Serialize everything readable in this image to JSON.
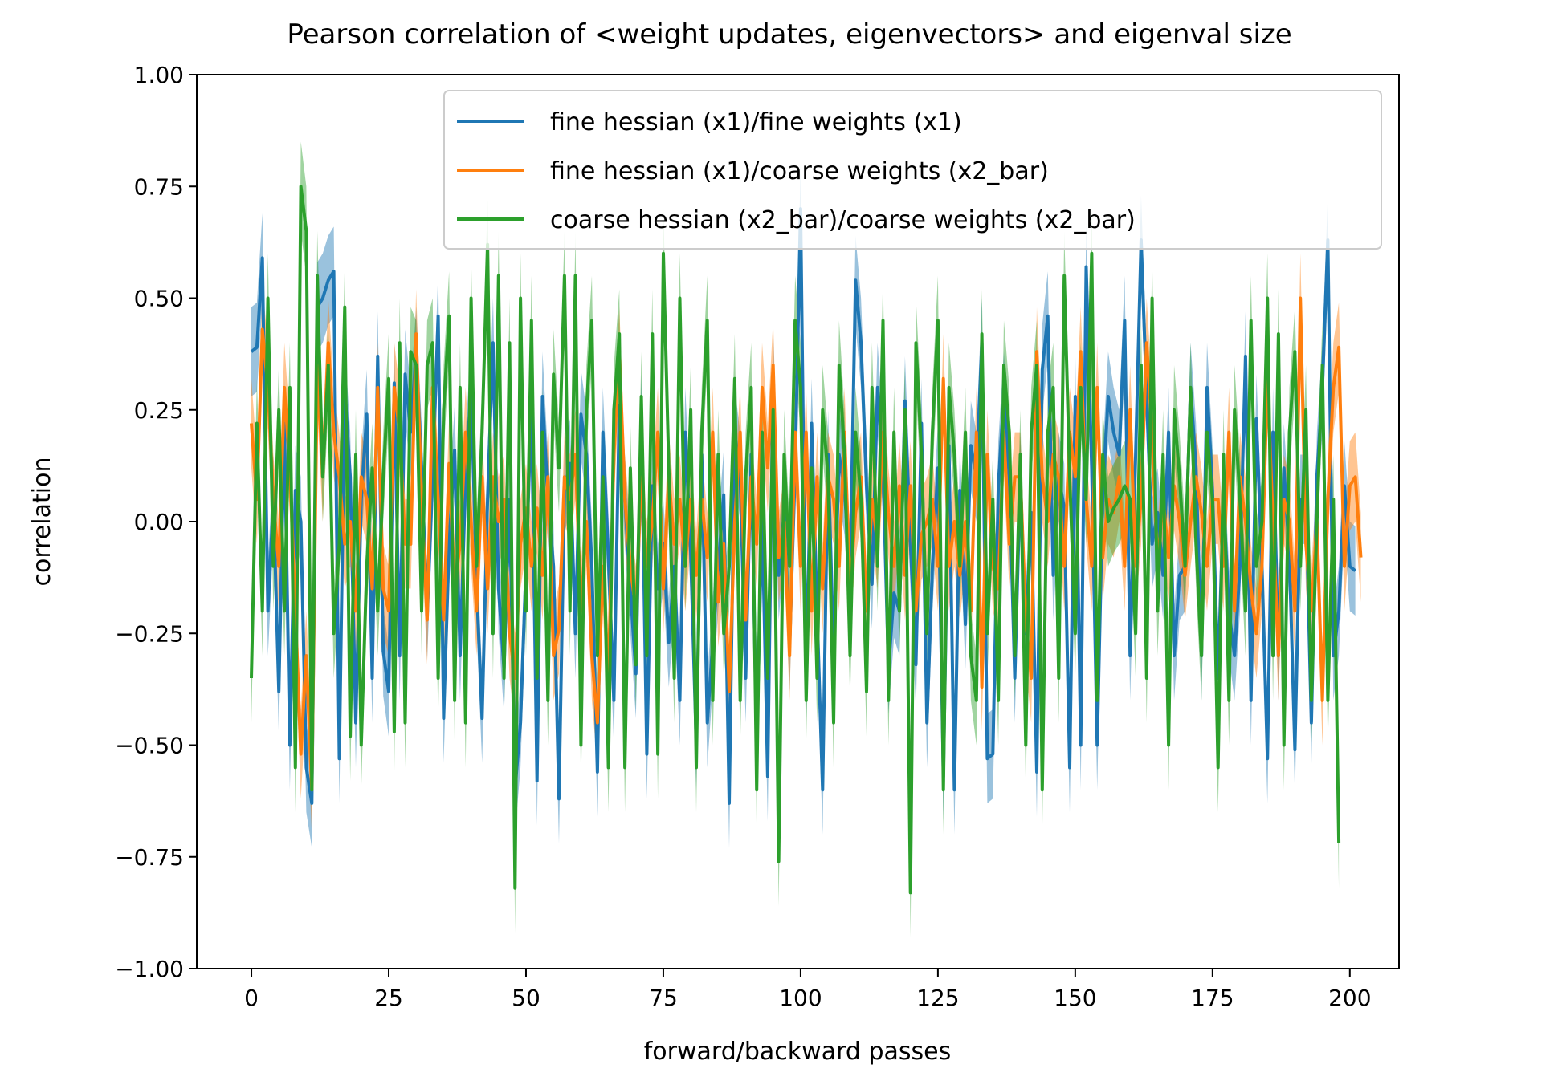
{
  "chart_data": {
    "type": "line",
    "title": "Pearson correlation of <weight updates, eigenvectors> and eigenval size",
    "xlabel": "forward/backward passes",
    "ylabel": "correlation",
    "xlim": [
      -9.95,
      208.95
    ],
    "ylim": [
      -1.0,
      1.0
    ],
    "xticks": [
      0,
      25,
      50,
      75,
      100,
      125,
      150,
      175,
      200
    ],
    "yticks": [
      -1.0,
      -0.75,
      -0.5,
      -0.25,
      0.0,
      0.25,
      0.5,
      0.75,
      1.0
    ],
    "xtick_labels": [
      "0",
      "25",
      "50",
      "75",
      "100",
      "125",
      "150",
      "175",
      "200"
    ],
    "ytick_labels": [
      "−1.00",
      "−0.75",
      "−0.50",
      "−0.25",
      "0.00",
      "0.25",
      "0.50",
      "0.75",
      "1.00"
    ],
    "grid": false,
    "legend_position": "top-right",
    "band_note": "shaded band approximately ±0.1 around each series",
    "series": [
      {
        "name": "fine hessian (x1)/fine weights (x1)",
        "color": "#1f77b4",
        "x_start": 0,
        "x_step": 1,
        "values": [
          0.38,
          0.39,
          0.59,
          -0.2,
          0.05,
          -0.38,
          0.22,
          -0.5,
          0.07,
          0.0,
          -0.55,
          -0.63,
          0.48,
          0.5,
          0.54,
          0.56,
          -0.53,
          0.3,
          0.1,
          -0.45,
          0.05,
          0.24,
          -0.35,
          0.37,
          -0.29,
          -0.38,
          0.31,
          -0.3,
          0.33,
          0.2,
          0.38,
          0.12,
          -0.21,
          0.1,
          0.46,
          -0.44,
          -0.05,
          0.16,
          -0.3,
          0.1,
          0.3,
          -0.14,
          -0.44,
          0.05,
          0.4,
          -0.15,
          -0.33,
          0.05,
          -0.6,
          -0.45,
          -0.1,
          0.26,
          -0.58,
          0.28,
          0.05,
          -0.1,
          -0.62,
          0.07,
          0.13,
          -0.25,
          0.24,
          0.15,
          -0.1,
          -0.56,
          0.2,
          -0.08,
          -0.4,
          0.26,
          0.05,
          -0.15,
          -0.34,
          0.23,
          -0.52,
          0.08,
          -0.15,
          -0.05,
          -0.27,
          -0.1,
          -0.4,
          0.2,
          -0.07,
          -0.5,
          0.15,
          -0.45,
          -0.27,
          -0.1,
          0.06,
          -0.63,
          0.2,
          0.1,
          -0.35,
          0.15,
          -0.5,
          0.02,
          -0.57,
          0.33,
          -0.12,
          0.02,
          -0.28,
          0.12,
          0.7,
          -0.36,
          0.22,
          -0.2,
          -0.6,
          0.15,
          -0.3,
          0.15,
          0.07,
          -0.12,
          0.54,
          0.4,
          0.08,
          -0.14,
          0.3,
          0.12,
          -0.33,
          -0.16,
          -0.2,
          0.27,
          -0.05,
          -0.32,
          0.22,
          -0.45,
          -0.1,
          0.12,
          -0.57,
          0.17,
          -0.6,
          0.07,
          -0.23,
          0.17,
          0.1,
          0.4,
          -0.53,
          -0.52,
          0.08,
          0.28,
          0.1,
          -0.35,
          0.1,
          -0.25,
          0.02,
          -0.56,
          0.34,
          0.46,
          -0.12,
          0.1,
          0.03,
          -0.55,
          0.28,
          -0.5,
          0.57,
          0.12,
          -0.5,
          0.06,
          0.28,
          0.2,
          0.15,
          0.45,
          -0.3,
          0.15,
          0.63,
          0.28,
          -0.05,
          0.02,
          -0.12,
          0.2,
          -0.3,
          -0.12,
          -0.1,
          0.3,
          0.12,
          -0.3,
          0.3,
          0.07,
          -0.35,
          0.05,
          -0.2,
          -0.3,
          -0.1,
          0.37,
          -0.4,
          0.23,
          -0.1,
          -0.53,
          0.2,
          -0.3,
          0.12,
          -0.08,
          -0.51,
          0.05,
          0.05,
          -0.45,
          0.1,
          0.3,
          0.63,
          -0.3,
          -0.2,
          0.08,
          -0.1,
          -0.11
        ]
      },
      {
        "name": "fine hessian (x1)/coarse weights (x2_bar)",
        "color": "#ff7f0e",
        "x_start": 0,
        "x_step": 1,
        "values": [
          0.22,
          0.05,
          0.43,
          0.3,
          0.05,
          -0.1,
          0.3,
          0.12,
          -0.2,
          -0.52,
          -0.3,
          -0.6,
          0.35,
          0.1,
          0.4,
          0.2,
          0.1,
          -0.05,
          0.0,
          -0.2,
          0.1,
          0.05,
          -0.15,
          0.3,
          -0.15,
          -0.2,
          0.3,
          0.2,
          -0.05,
          -0.05,
          0.42,
          0.05,
          -0.22,
          0.3,
          0.05,
          -0.22,
          0.13,
          -0.15,
          -0.05,
          0.2,
          0.0,
          -0.2,
          0.1,
          -0.15,
          0.1,
          0.0,
          0.05,
          -0.25,
          -0.35,
          -0.05,
          0.03,
          -0.1,
          0.03,
          -0.12,
          0.1,
          -0.3,
          -0.24,
          0.1,
          0.05,
          0.15,
          -0.2,
          0.0,
          -0.3,
          -0.45,
          -0.1,
          -0.35,
          0.15,
          0.38,
          0.05,
          -0.1,
          -0.2,
          0.1,
          -0.1,
          0.0,
          0.2,
          -0.15,
          0.1,
          -0.05,
          0.05,
          -0.1,
          0.05,
          -0.12,
          0.05,
          -0.08,
          0.2,
          -0.18,
          -0.05,
          -0.38,
          0.0,
          0.2,
          -0.22,
          0.1,
          -0.05,
          0.3,
          0.12,
          0.35,
          -0.08,
          0.0,
          -0.3,
          0.2,
          -0.1,
          0.2,
          -0.2,
          0.1,
          -0.15,
          0.1,
          0.05,
          -0.1,
          0.2,
          -0.15,
          0.02,
          0.1,
          -0.2,
          0.05,
          -0.05,
          0.2,
          0.02,
          -0.1,
          0.08,
          -0.12,
          0.08,
          -0.2,
          -0.03,
          0.0,
          0.05,
          -0.1,
          0.32,
          -0.1,
          0.0,
          -0.12,
          0.0,
          -0.2,
          0.2,
          -0.37,
          0.15,
          -0.1,
          -0.15,
          0.2,
          -0.05,
          0.1,
          0.1,
          -0.22,
          -0.35,
          0.38,
          0.1,
          0.0,
          0.15,
          0.1,
          -0.1,
          0.2,
          0.1,
          0.38,
          0.05,
          -0.1,
          0.3,
          -0.08,
          0.05,
          0.02,
          0.1,
          -0.1,
          0.25,
          -0.1,
          0.05,
          0.4,
          0.2,
          -0.1,
          0.05,
          -0.08,
          0.08,
          0.0,
          -0.12,
          0.0,
          0.1,
          0.02,
          -0.1,
          0.05,
          0.05,
          -0.1,
          0.2,
          -0.2,
          0.1,
          0.0,
          -0.15,
          -0.25,
          -0.1,
          0.32,
          0.0,
          -0.3,
          0.05,
          0.0,
          -0.2,
          0.5,
          -0.05,
          -0.2,
          0.0,
          -0.4,
          0.05,
          0.3,
          0.39,
          -0.1,
          0.08,
          0.1,
          -0.08
        ]
      },
      {
        "name": "coarse hessian (x2_bar)/coarse weights (x2_bar)",
        "color": "#2ca02c",
        "x_start": 0,
        "x_step": 1,
        "values": [
          -0.35,
          0.22,
          -0.2,
          0.5,
          -0.1,
          0.25,
          -0.2,
          0.3,
          -0.55,
          0.75,
          0.65,
          -0.6,
          0.55,
          0.1,
          0.35,
          -0.25,
          -0.05,
          0.48,
          -0.48,
          0.15,
          -0.5,
          -0.1,
          0.12,
          -0.2,
          0.1,
          0.32,
          -0.47,
          0.4,
          -0.45,
          0.38,
          0.35,
          -0.2,
          0.35,
          0.4,
          -0.35,
          0.25,
          0.46,
          -0.4,
          0.3,
          -0.45,
          0.5,
          -0.1,
          0.2,
          0.62,
          -0.25,
          0.55,
          -0.35,
          0.4,
          -0.82,
          0.5,
          -0.2,
          0.45,
          -0.35,
          0.2,
          -0.4,
          0.33,
          0.12,
          0.55,
          -0.2,
          0.55,
          -0.5,
          0.25,
          0.45,
          -0.3,
          0.1,
          -0.55,
          0.25,
          0.42,
          -0.55,
          0.12,
          -0.32,
          0.28,
          -0.3,
          0.42,
          -0.52,
          0.6,
          0.12,
          -0.35,
          0.5,
          -0.1,
          0.25,
          -0.55,
          0.2,
          0.45,
          -0.4,
          0.15,
          -0.25,
          -0.1,
          0.32,
          -0.4,
          0.1,
          0.3,
          -0.6,
          0.2,
          -0.35,
          0.25,
          -0.76,
          0.15,
          -0.1,
          0.45,
          0.3,
          -0.4,
          0.12,
          -0.35,
          0.25,
          0.1,
          -0.45,
          0.35,
          0.15,
          -0.3,
          0.2,
          0.05,
          -0.38,
          0.3,
          -0.1,
          0.45,
          -0.4,
          0.2,
          -0.2,
          0.25,
          -0.83,
          0.4,
          0.15,
          -0.25,
          0.2,
          0.45,
          -0.6,
          0.3,
          0.15,
          -0.1,
          0.2,
          -0.3,
          -0.4,
          0.42,
          -0.25,
          0.05,
          -0.4,
          0.35,
          0.2,
          -0.3,
          0.15,
          -0.5,
          0.2,
          0.35,
          -0.6,
          0.2,
          0.3,
          -0.35,
          0.55,
          0.1,
          -0.25,
          0.3,
          0.05,
          0.6,
          -0.4,
          0.15,
          0.0,
          0.03,
          0.05,
          0.08,
          0.05,
          -0.25,
          0.35,
          -0.35,
          0.5,
          -0.2,
          0.15,
          -0.5,
          0.25,
          0.1,
          -0.1,
          0.3,
          -0.05,
          -0.3,
          0.2,
          0.05,
          -0.55,
          0.15,
          -0.4,
          0.25,
          0.05,
          -0.2,
          0.45,
          -0.1,
          0.0,
          0.5,
          -0.3,
          0.42,
          -0.5,
          0.2,
          0.38,
          -0.1,
          0.25,
          -0.4,
          0.0,
          0.35,
          -0.4,
          0.05,
          -0.72
        ]
      }
    ]
  }
}
